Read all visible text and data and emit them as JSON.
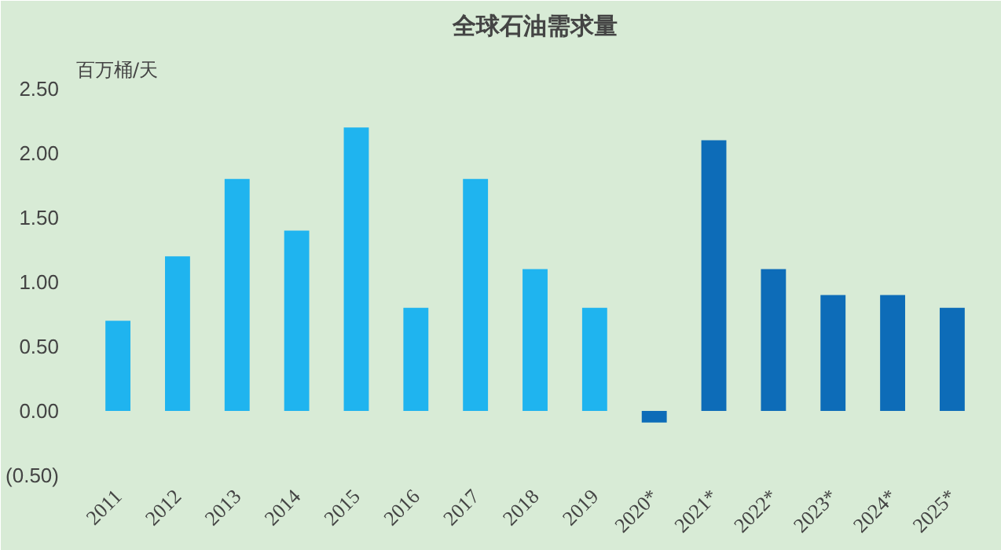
{
  "chart_data": {
    "type": "bar",
    "title": "全球石油需求量",
    "ylabel": "百万桶/天",
    "categories": [
      "2011",
      "2012",
      "2013",
      "2014",
      "2015",
      "2016",
      "2017",
      "2018",
      "2019",
      "2020*",
      "2021*",
      "2022*",
      "2023*",
      "2024*",
      "2025*"
    ],
    "values": [
      0.7,
      1.2,
      1.8,
      1.4,
      2.2,
      0.8,
      1.8,
      1.1,
      0.8,
      -0.09,
      2.1,
      1.1,
      0.9,
      0.9,
      0.8
    ],
    "colors": [
      "#1fb4ef",
      "#1fb4ef",
      "#1fb4ef",
      "#1fb4ef",
      "#1fb4ef",
      "#1fb4ef",
      "#1fb4ef",
      "#1fb4ef",
      "#1fb4ef",
      "#0d6cb8",
      "#0d6cb8",
      "#0d6cb8",
      "#0d6cb8",
      "#0d6cb8",
      "#0d6cb8"
    ],
    "ylim": [
      -0.5,
      2.5
    ],
    "yticks": [
      {
        "value": -0.5,
        "label": "(0.50)"
      },
      {
        "value": 0,
        "label": "0.00"
      },
      {
        "value": 0.5,
        "label": "0.50"
      },
      {
        "value": 1,
        "label": "1.00"
      },
      {
        "value": 1.5,
        "label": "1.50"
      },
      {
        "value": 2,
        "label": "2.00"
      },
      {
        "value": 2.5,
        "label": "2.50"
      }
    ]
  }
}
